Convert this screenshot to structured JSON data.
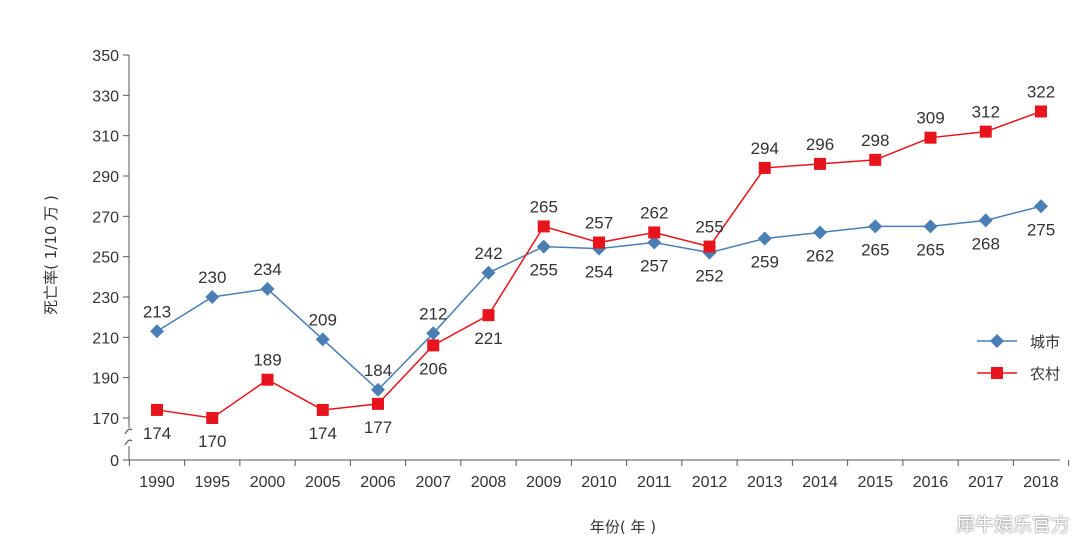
{
  "chart_data": {
    "type": "line",
    "title": "",
    "xlabel": "年份( 年 )",
    "ylabel": "死亡率( 1/10 万 )",
    "categories": [
      "1990",
      "1995",
      "2000",
      "2005",
      "2006",
      "2007",
      "2008",
      "2009",
      "2010",
      "2011",
      "2012",
      "2013",
      "2014",
      "2015",
      "2016",
      "2017",
      "2018"
    ],
    "yticks": [
      0,
      170,
      190,
      210,
      230,
      250,
      270,
      290,
      310,
      330,
      350
    ],
    "ylim": [
      170,
      350
    ],
    "axis_break": true,
    "grid": false,
    "legend_position": "right",
    "series": [
      {
        "name": "城市",
        "color": "#4a7fb5",
        "marker": "diamond",
        "values": [
          213,
          230,
          234,
          209,
          184,
          212,
          242,
          255,
          254,
          257,
          252,
          259,
          262,
          265,
          265,
          268,
          275
        ]
      },
      {
        "name": "农村",
        "color": "#e8141c",
        "marker": "square",
        "values": [
          174,
          170,
          189,
          174,
          177,
          206,
          221,
          265,
          257,
          262,
          255,
          294,
          296,
          298,
          309,
          312,
          322
        ]
      }
    ]
  },
  "watermark": "犀牛娱乐官方"
}
